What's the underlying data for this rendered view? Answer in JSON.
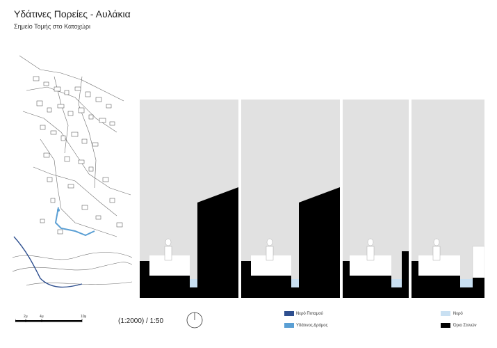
{
  "header": {
    "title": "Υδάτινες Πορείες - Αυλάκια",
    "subtitle": "Σημείο Τομής στο Κατοχώρι"
  },
  "scale": {
    "tick_labels": [
      "2μ",
      "4μ",
      "10μ"
    ],
    "ratio": "(1:2000) / 1:50"
  },
  "legend": {
    "river_water": {
      "label": "Νερό Ποταμού",
      "color": "#2e4f8f"
    },
    "water_road": {
      "label": "Υδάτινος Δρόμος",
      "color": "#5a9fd4"
    },
    "water": {
      "label": "Νερό",
      "color": "#c9e0f2"
    },
    "alley_boundary": {
      "label": "Όριο Στενών",
      "color": "#000000"
    }
  },
  "colors": {
    "sky": "#e1e1e1",
    "ground": "#000000"
  }
}
